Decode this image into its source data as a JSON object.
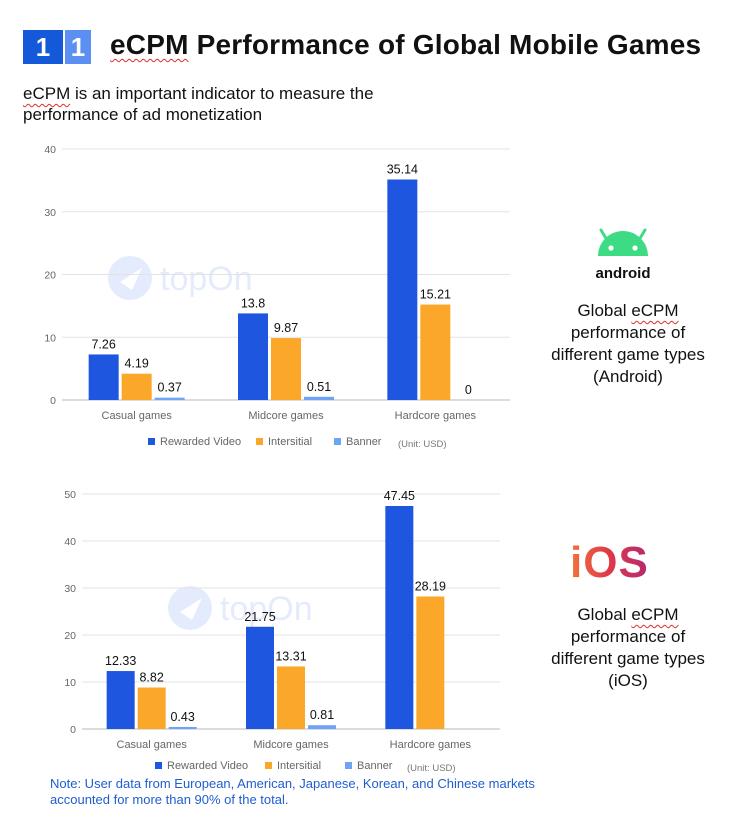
{
  "header": {
    "badge_primary": "1",
    "badge_secondary": "1",
    "title": "eCPM Performance of Global Mobile Games",
    "intro": "eCPM is an important indicator to measure the performance of ad monetization"
  },
  "captions": {
    "android_wordmark": "android",
    "android": "Global eCPM performance of different game types (Android)",
    "ios_wordmark": "iOS",
    "ios": "Global eCPM performance of different game types (iOS)"
  },
  "watermark": "topOn",
  "note": "Note: User data from European, American, Japanese, Korean, and Chinese markets accounted for more than 90% of the total.",
  "colors": {
    "rewarded": "#1f56e0",
    "interstitial": "#fba72a",
    "banner": "#6ea3f6",
    "brand": "#1459d9",
    "android": "#3ddc84"
  },
  "chart_data": [
    {
      "type": "bar",
      "categories": [
        "Casual games",
        "Midcore games",
        "Hardcore games"
      ],
      "series": [
        {
          "name": "Rewarded Video",
          "values": [
            7.26,
            13.8,
            35.14
          ]
        },
        {
          "name": "Intersitial",
          "values": [
            4.19,
            9.87,
            15.21
          ]
        },
        {
          "name": "Banner",
          "values": [
            0.37,
            0.51,
            0
          ]
        }
      ],
      "ylim": [
        0,
        40
      ],
      "yticks": [
        0,
        10,
        20,
        30,
        40
      ],
      "unit_note": "(Unit: USD)",
      "legend": "bottom",
      "grid": true
    },
    {
      "type": "bar",
      "categories": [
        "Casual games",
        "Midcore games",
        "Hardcore games"
      ],
      "series": [
        {
          "name": "Rewarded Video",
          "values": [
            12.33,
            21.75,
            47.45
          ]
        },
        {
          "name": "Intersitial",
          "values": [
            8.82,
            13.31,
            28.19
          ]
        },
        {
          "name": "Banner",
          "values": [
            0.43,
            0.81,
            null
          ]
        }
      ],
      "ylim": [
        0,
        50
      ],
      "yticks": [
        0,
        10,
        20,
        30,
        40,
        50
      ],
      "unit_note": "(Unit: USD)",
      "legend": "bottom",
      "grid": true
    }
  ]
}
